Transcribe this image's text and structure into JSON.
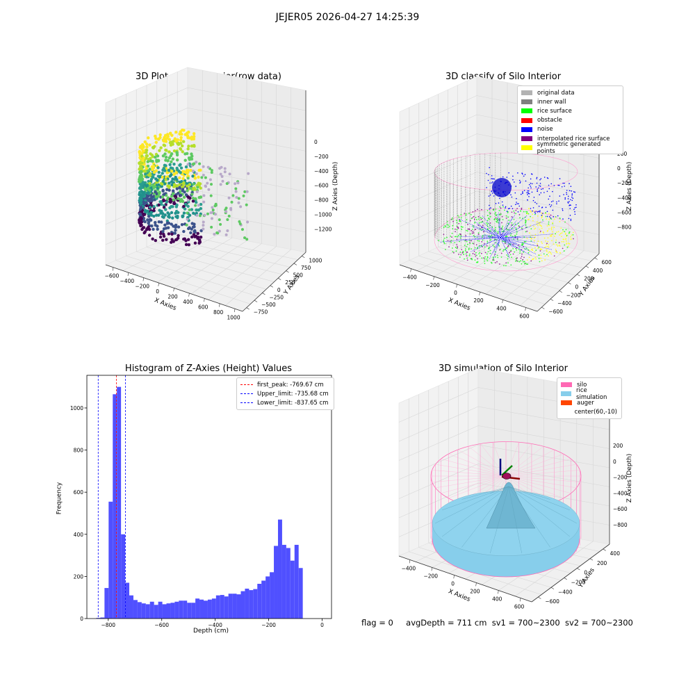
{
  "suptitle": "JEJER05 2026-04-27 14:25:39",
  "plots": {
    "raw": {
      "title": "3D Plot of Silo Interior(row data)",
      "x_label": "X Axies",
      "y_label": "Y Axies",
      "z_label": "Z Axies (Depth)",
      "x_ticks": [
        "−600",
        "−400",
        "−200",
        "0",
        "200",
        "400",
        "600",
        "800",
        "1000"
      ],
      "y_ticks": [
        "−750",
        "−500",
        "−250",
        "0",
        "250",
        "500",
        "750",
        "1000"
      ],
      "z_ticks": [
        "0",
        "−200",
        "−400",
        "−600",
        "−800",
        "−1000",
        "−1200"
      ]
    },
    "classify": {
      "title": "3D classify of Silo Interior",
      "x_label": "X Axies",
      "y_label": "Y Axies",
      "z_label": "Z Axies (Depth)",
      "x_ticks": [
        "−400",
        "−200",
        "0",
        "200",
        "400",
        "600"
      ],
      "y_ticks": [
        "−600",
        "−400",
        "−200",
        "0",
        "200",
        "400",
        "600"
      ],
      "z_ticks": [
        "200",
        "0",
        "−200",
        "−400",
        "−600",
        "−800"
      ],
      "legend": [
        {
          "label": "original data",
          "color": "#b3b3b3"
        },
        {
          "label": "inner wall",
          "color": "#808080"
        },
        {
          "label": "rice surface",
          "color": "#00ff00"
        },
        {
          "label": "obstacle",
          "color": "#ff0000"
        },
        {
          "label": "noise",
          "color": "#0000ff"
        },
        {
          "label": "interpolated rice surface",
          "color": "#800080"
        },
        {
          "label": "symmetric generated points",
          "color": "#ffff00"
        }
      ]
    },
    "simulation": {
      "title": "3D simulation of Silo Interior",
      "x_label": "X Axies",
      "y_label": "Y Axies",
      "z_label": "Z Axies (Depth)",
      "x_ticks": [
        "−400",
        "−200",
        "0",
        "200",
        "400",
        "600"
      ],
      "y_ticks": [
        "−600",
        "−400",
        "−200",
        "0",
        "200",
        "400"
      ],
      "z_ticks": [
        "200",
        "0",
        "−200",
        "−400",
        "−600",
        "−800"
      ],
      "legend": [
        {
          "label": "silo",
          "color": "#ff69b4"
        },
        {
          "label": "rice simulation",
          "color": "#87ceeb"
        },
        {
          "label": "auger",
          "color": "#ff4500"
        },
        {
          "label": "center(60,-10)",
          "color": "#ffffff"
        }
      ]
    }
  },
  "chart_data": {
    "type": "bar",
    "title": "Histogram of Z-Axies (Height) Values",
    "xlabel": "Depth (cm)",
    "ylabel": "Frequency",
    "xlim": [
      -880,
      35
    ],
    "ylim": [
      0,
      1155
    ],
    "x_ticks": [
      -800,
      -600,
      -400,
      -200,
      0
    ],
    "y_ticks": [
      0,
      200,
      400,
      600,
      800,
      1000
    ],
    "bin_width": 15.45,
    "bin_start": -845,
    "values": [
      3,
      5,
      145,
      555,
      1065,
      1100,
      400,
      170,
      110,
      88,
      78,
      72,
      68,
      80,
      65,
      80,
      68,
      72,
      75,
      80,
      85,
      85,
      75,
      75,
      95,
      90,
      85,
      90,
      95,
      110,
      112,
      105,
      118,
      118,
      115,
      130,
      142,
      135,
      140,
      165,
      180,
      200,
      220,
      345,
      470,
      350,
      335,
      275,
      350,
      240
    ],
    "bar_color": "#5050ff",
    "vlines": [
      {
        "name": "first_peak",
        "value": -769.67,
        "color": "#ff0000",
        "label": "first_peak: -769.67 cm"
      },
      {
        "name": "upper_limit",
        "value": -735.68,
        "color": "#0000ff",
        "label": "Upper_limit: -735.68 cm"
      },
      {
        "name": "lower_limit",
        "value": -837.65,
        "color": "#0000ff",
        "label": "Lower_limit: -837.65 cm"
      }
    ]
  },
  "status": {
    "flag": "flag = 0",
    "avg_depth": "avgDepth = 711 cm",
    "sv1": "sv1 = 700~2300",
    "sv2": "sv2 = 700~2300"
  }
}
